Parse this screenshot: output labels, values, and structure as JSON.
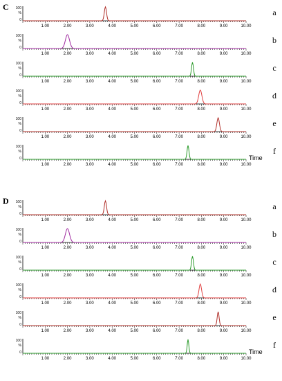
{
  "chart_data": [
    {
      "type": "line",
      "panel_label": "C",
      "x_range": [
        0.0,
        10.0
      ],
      "x_ticks": [
        "1.00",
        "2.00",
        "3.00",
        "4.00",
        "5.00",
        "6.00",
        "7.00",
        "8.00",
        "9.00",
        "10.00"
      ],
      "y_ticks": [
        "100",
        "%",
        "0"
      ],
      "xlabel": "Time",
      "traces": [
        {
          "label": "a",
          "color": "#b0302a",
          "peak_x": 3.7,
          "width": 0.07,
          "max_y": 100
        },
        {
          "label": "b",
          "color": "#a02aa0",
          "peak_x": 2.0,
          "width": 0.13,
          "max_y": 100
        },
        {
          "label": "c",
          "color": "#2a9a2a",
          "peak_x": 7.6,
          "width": 0.06,
          "max_y": 100
        },
        {
          "label": "d",
          "color": "#e04040",
          "peak_x": 7.95,
          "width": 0.1,
          "max_y": 100
        },
        {
          "label": "e",
          "color": "#b0302a",
          "peak_x": 8.75,
          "width": 0.08,
          "max_y": 100
        },
        {
          "label": "f",
          "color": "#2a9a2a",
          "peak_x": 7.4,
          "width": 0.06,
          "max_y": 100
        }
      ]
    },
    {
      "type": "line",
      "panel_label": "D",
      "x_range": [
        0.0,
        10.0
      ],
      "x_ticks": [
        "1.00",
        "2.00",
        "3.00",
        "4.00",
        "5.00",
        "6.00",
        "7.00",
        "8.00",
        "9.00",
        "10.00"
      ],
      "y_ticks": [
        "100",
        "%",
        "0"
      ],
      "xlabel": "Time",
      "traces": [
        {
          "label": "a",
          "color": "#b0302a",
          "peak_x": 3.7,
          "width": 0.07,
          "max_y": 100
        },
        {
          "label": "b",
          "color": "#a02aa0",
          "peak_x": 2.0,
          "width": 0.13,
          "max_y": 100
        },
        {
          "label": "c",
          "color": "#2a9a2a",
          "peak_x": 7.6,
          "width": 0.06,
          "max_y": 100
        },
        {
          "label": "d",
          "color": "#e04040",
          "peak_x": 7.95,
          "width": 0.08,
          "max_y": 100
        },
        {
          "label": "e",
          "color": "#b0302a",
          "peak_x": 8.75,
          "width": 0.06,
          "max_y": 100
        },
        {
          "label": "f",
          "color": "#2a9a2a",
          "peak_x": 7.4,
          "width": 0.05,
          "max_y": 100
        }
      ]
    }
  ]
}
